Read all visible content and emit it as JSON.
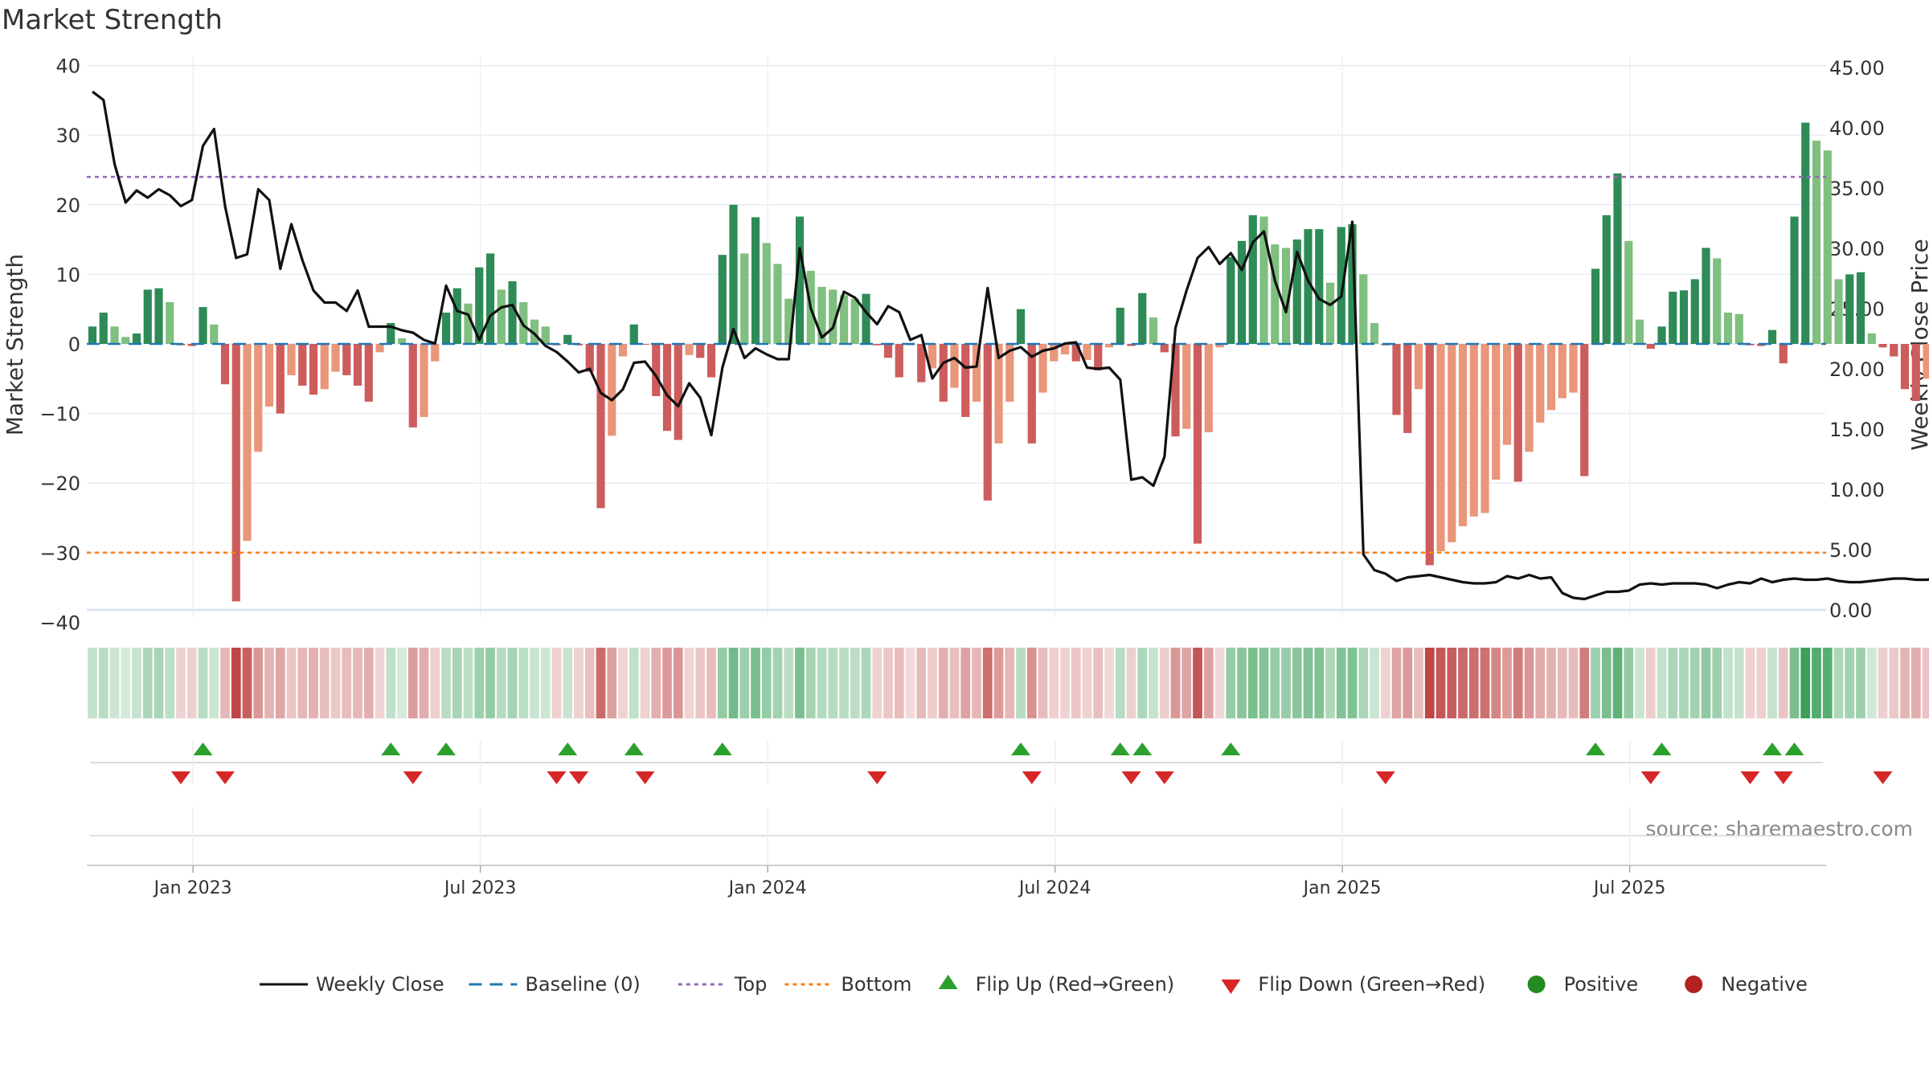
{
  "chart_data": {
    "type": "bar",
    "title": "Market Strength",
    "source": "source: sharemaestro.com",
    "ylabel_left": "Market Strength",
    "ylabel_right": "Weekly Close Price",
    "ylim_left": [
      -40,
      40
    ],
    "ylim_right": [
      0,
      45
    ],
    "yticks_left": [
      "40",
      "30",
      "20",
      "10",
      "0",
      "−10",
      "−20",
      "−30",
      "−40"
    ],
    "yticks_right": [
      "45.00",
      "40.00",
      "35.00",
      "30.00",
      "25.00",
      "20.00",
      "15.00",
      "10.00",
      "5.00",
      "0.00"
    ],
    "xticks": [
      "Jan 2023",
      "Jul 2023",
      "Jan 2024",
      "Jul 2024",
      "Jan 2025",
      "Jul 2025"
    ],
    "top_level": 24,
    "bottom_level": -30,
    "baseline": 0,
    "grid": true,
    "legend_position": "bottom",
    "legend": [
      "Weekly Close",
      "Baseline (0)",
      "Top",
      "Bottom",
      "Flip Up (Red→Green)",
      "Flip Down (Green→Red)",
      "Positive",
      "Negative"
    ],
    "colors": {
      "dark_green": "#2e8b57",
      "light_green": "#7fbf7f",
      "dark_red": "#cd5c5c",
      "light_red": "#e9967a",
      "line": "#111111",
      "baseline": "#1f77b4",
      "top": "#9467bd",
      "bottom": "#ff7f0e",
      "flip_up": "#2ca02c",
      "flip_down": "#d62728",
      "positive": "#228b22",
      "negative": "#b22222"
    },
    "series": [
      {
        "name": "Market Strength",
        "start": "2022-10-31",
        "interval_days": 7,
        "values": [
          2.5,
          4.5,
          2.5,
          1,
          1.5,
          7.8,
          8,
          6,
          -0.2,
          -0.3,
          5.3,
          2.8,
          -5.8,
          -37,
          -28.3,
          -15.5,
          -9,
          -10,
          -4.5,
          -6,
          -7.3,
          -6.5,
          -4,
          -4.5,
          -6,
          -8.3,
          -1.2,
          3,
          0.8,
          -12,
          -10.5,
          -2.5,
          4.5,
          8,
          5.8,
          11,
          13,
          7.8,
          9,
          6,
          3.5,
          2.5,
          -0.2,
          1.3,
          -0.2,
          -4,
          -23.6,
          -13.2,
          -1.8,
          2.8,
          -0.1,
          -7.5,
          -12.5,
          -13.8,
          -1.6,
          -2,
          -4.8,
          12.8,
          20,
          13,
          18.2,
          14.5,
          11.5,
          6.5,
          18.3,
          10.5,
          8.2,
          7.8,
          7,
          6.5,
          7.2,
          -0.2,
          -2,
          -4.8,
          -0.2,
          -5.5,
          -3.5,
          -8.3,
          -6.3,
          -10.5,
          -8.3,
          -22.5,
          -14.3,
          -8.3,
          5,
          -14.3,
          -7,
          -2.5,
          -1.5,
          -2.5,
          -2.3,
          -3.8,
          -0.5,
          5.2,
          -0.3,
          7.3,
          3.8,
          -1.2,
          -13.3,
          -12.2,
          -28.7,
          -12.7,
          -0.5,
          12.5,
          14.8,
          18.5,
          18.3,
          14.3,
          13.8,
          15,
          16.5,
          16.5,
          8.8,
          16.8,
          17.2,
          10,
          3,
          -0.2,
          -10.2,
          -12.8,
          -6.5,
          -31.8,
          -29.8,
          -28.5,
          -26.2,
          -24.8,
          -24.3,
          -19.5,
          -14.5,
          -19.8,
          -15.5,
          -11.3,
          -9.5,
          -7.8,
          -7,
          -19,
          10.8,
          18.5,
          24.5,
          14.8,
          3.5,
          -0.7,
          2.5,
          7.5,
          7.7,
          9.3,
          13.8,
          12.3,
          4.5,
          4.3,
          -0.2,
          -0.3,
          2,
          -2.8,
          18.3,
          31.8,
          29.2,
          27.8,
          9.3,
          10,
          10.3,
          1.5,
          -0.5,
          -1.8,
          -6.5,
          -8.2,
          -5
        ]
      },
      {
        "name": "Weekly Close",
        "start": "2022-10-31",
        "interval_days": 7,
        "values": [
          43,
          42.3,
          37,
          33.8,
          34.8,
          34.2,
          34.9,
          34.4,
          33.5,
          34,
          38.5,
          39.9,
          33.5,
          29.2,
          29.5,
          34.9,
          34,
          28.3,
          32,
          29,
          26.5,
          25.5,
          25.5,
          24.8,
          26.5,
          23.5,
          23.5,
          23.5,
          23.2,
          23,
          22.4,
          22.1,
          26.9,
          24.8,
          24.5,
          22.4,
          24.4,
          25.1,
          25.3,
          23.6,
          22.9,
          21.9,
          21.4,
          20.6,
          19.7,
          20,
          18,
          17.4,
          18.3,
          20.5,
          20.6,
          19.4,
          17.8,
          16.9,
          18.8,
          17.6,
          14.5,
          20.1,
          23.3,
          20.9,
          21.7,
          21.2,
          20.8,
          20.8,
          30,
          25,
          22.6,
          23.4,
          26.4,
          25.9,
          24.7,
          23.7,
          25.2,
          24.7,
          22.4,
          22.8,
          19.2,
          20.5,
          20.9,
          20.1,
          20.2,
          26.7,
          20.9,
          21.5,
          21.8,
          21,
          21.5,
          21.7,
          22.1,
          22.2,
          20.1,
          20,
          20.1,
          19.1,
          10.8,
          11,
          10.3,
          12.7,
          23.4,
          26.5,
          29.2,
          30.1,
          28.7,
          29.6,
          28.2,
          30.5,
          31.4,
          27.3,
          24.7,
          29.7,
          27.3,
          25.8,
          25.3,
          26,
          32.2,
          4.6,
          3.3,
          3,
          2.4,
          2.7,
          2.8,
          2.9,
          2.7,
          2.5,
          2.3,
          2.2,
          2.2,
          2.3,
          2.8,
          2.6,
          2.9,
          2.6,
          2.7,
          1.4,
          1,
          0.9,
          1.2,
          1.5,
          1.5,
          1.6,
          2.1,
          2.2,
          2.1,
          2.2,
          2.2,
          2.2,
          2.1,
          1.8,
          2.1,
          2.3,
          2.2,
          2.6,
          2.3,
          2.5,
          2.6,
          2.5,
          2.5,
          2.6,
          2.4,
          2.3,
          2.3,
          2.4,
          2.5,
          2.6,
          2.6,
          2.5,
          2.5,
          2.7
        ]
      }
    ]
  }
}
